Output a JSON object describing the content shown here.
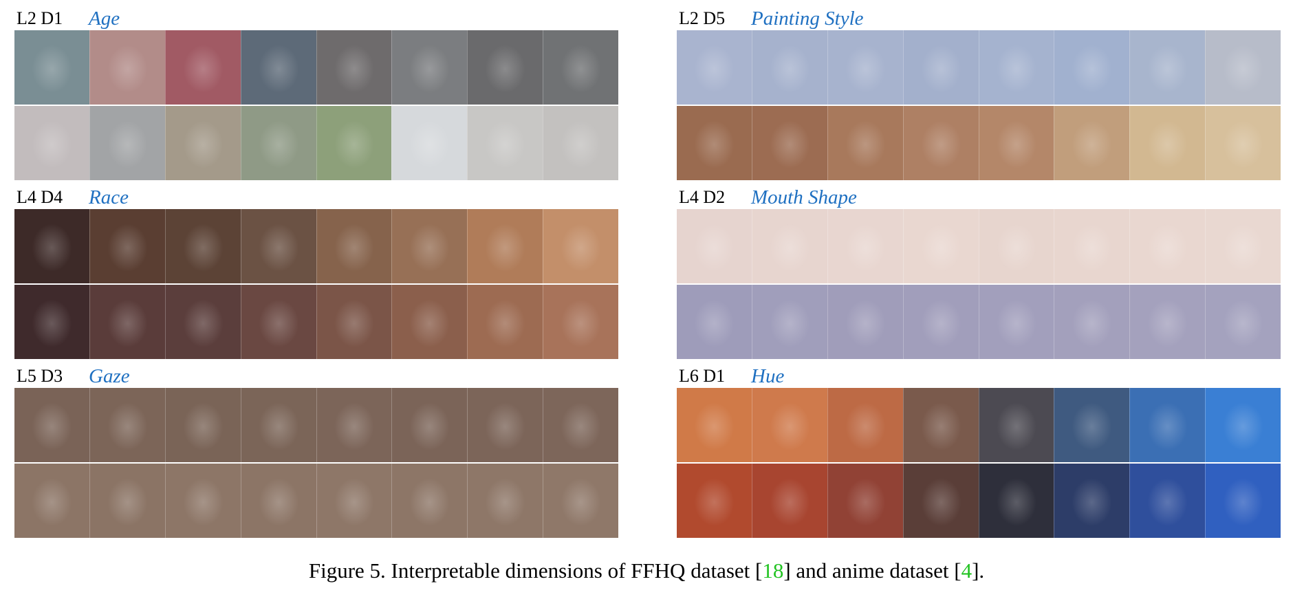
{
  "panels": [
    {
      "layer_dim": "L2 D1",
      "attribute": "Age",
      "rows": [
        [
          "#7a8e94",
          "#b28c89",
          "#a15a64",
          "#5d6a78",
          "#6e6b6c",
          "#7b7d80",
          "#6a6a6c",
          "#707274"
        ],
        [
          "#c2bcbd",
          "#a2a4a6",
          "#a49a8a",
          "#8f9a86",
          "#8da07a",
          "#d6d9dc",
          "#c8c7c5",
          "#c3c1bf"
        ]
      ]
    },
    {
      "layer_dim": "L2 D5",
      "attribute": "Painting Style",
      "rows": [
        [
          "#a9b4cf",
          "#a6b2cd",
          "#a7b3ce",
          "#a3b0cc",
          "#a5b3cf",
          "#a1b1cf",
          "#a8b5cd",
          "#b7bcc9"
        ],
        [
          "#9a6b50",
          "#9c6c52",
          "#a8795c",
          "#ae8064",
          "#b48769",
          "#c19e7c",
          "#d2b891",
          "#d7c09c"
        ]
      ]
    },
    {
      "layer_dim": "L4 D4",
      "attribute": "Race",
      "rows": [
        [
          "#3d2a28",
          "#5a3e32",
          "#5c4336",
          "#6b5244",
          "#86634c",
          "#977056",
          "#b07c59",
          "#c38f6a"
        ],
        [
          "#3f2a2c",
          "#5a3c3a",
          "#5b3e3c",
          "#6a4842",
          "#7b5548",
          "#8b5f4c",
          "#9d6b52",
          "#a8735a"
        ]
      ]
    },
    {
      "layer_dim": "L4 D2",
      "attribute": "Mouth Shape",
      "rows": [
        [
          "#e6d4cf",
          "#e7d5cf",
          "#e8d6d0",
          "#e9d7d0",
          "#e7d5ce",
          "#e8d6cf",
          "#e9d7d0",
          "#e9d8d1"
        ],
        [
          "#9e9cba",
          "#a09ebb",
          "#a09dba",
          "#a19ebb",
          "#a29fbc",
          "#a3a0bc",
          "#a4a1bd",
          "#a4a2be"
        ]
      ]
    },
    {
      "layer_dim": "L5 D3",
      "attribute": "Gaze",
      "rows": [
        [
          "#7a6357",
          "#7c6558",
          "#7a6457",
          "#7b6558",
          "#7c6559",
          "#7b6458",
          "#7c6559",
          "#7d665a"
        ],
        [
          "#8c7566",
          "#8b7465",
          "#8d7667",
          "#8c7566",
          "#8e7768",
          "#8d7667",
          "#8e7768",
          "#8f7869"
        ]
      ]
    },
    {
      "layer_dim": "L6 D1",
      "attribute": "Hue",
      "rows": [
        [
          "#d07a48",
          "#cf7a4c",
          "#bd6a45",
          "#7a5a4c",
          "#4c4a52",
          "#3f5a80",
          "#3b6fb4",
          "#3a7fd4"
        ],
        [
          "#b14a2e",
          "#a84530",
          "#914235",
          "#5a3e38",
          "#2e2f3b",
          "#2d3d68",
          "#2f4f9c",
          "#3060c0"
        ]
      ]
    }
  ],
  "caption": {
    "prefix": "Figure 5. Interpretable dimensions of FFHQ dataset [",
    "ref1": "18",
    "middle": "] and anime dataset [",
    "ref2": "4",
    "suffix": "]."
  }
}
